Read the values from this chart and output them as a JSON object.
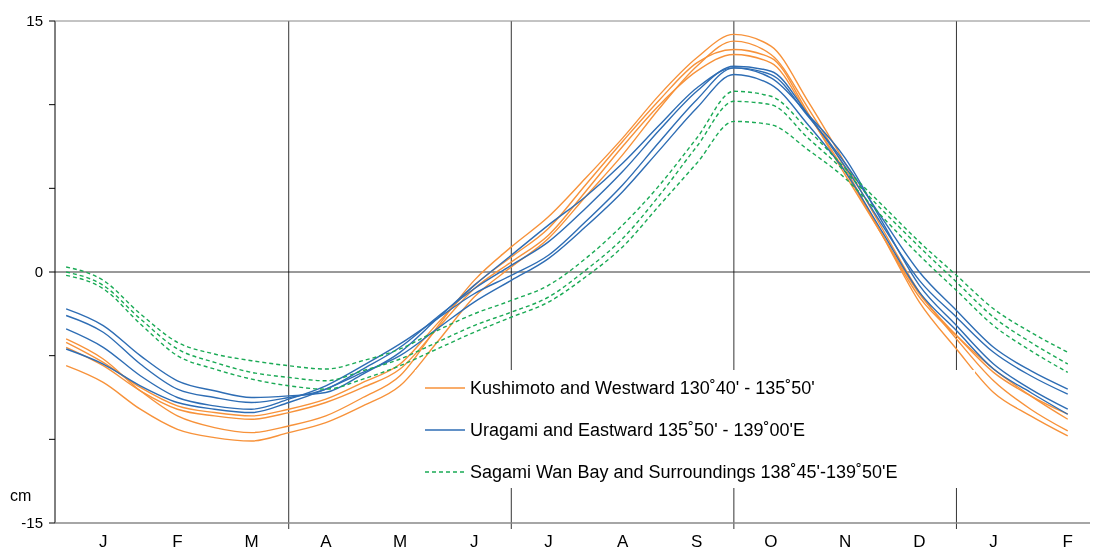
{
  "chart_data": {
    "type": "line",
    "ylabel": "cm",
    "categories": [
      null,
      "J",
      null,
      "F",
      null,
      "M",
      null,
      "A",
      null,
      "M",
      null,
      "J",
      null,
      "J",
      null,
      "A",
      null,
      "S",
      null,
      "O",
      null,
      "N",
      null,
      "D",
      null,
      "J",
      null,
      "F"
    ],
    "ylim": [
      -15,
      15
    ],
    "yticks": [
      -15,
      {
        "value": -10,
        "label": null
      },
      {
        "value": -5,
        "label": null
      },
      0,
      {
        "value": 5,
        "label": null
      },
      {
        "value": 10,
        "label": null
      },
      15
    ],
    "grid": "x",
    "legend": "bottom right",
    "marker": "none",
    "ref_lines": [
      {
        "axis": "y",
        "value": 0,
        "color": "#000000"
      }
    ],
    "series": [
      {
        "name": "Kushimoto and Westward 130˚40' - 135˚50'",
        "color": "#f7923a",
        "line_style": "solid",
        "values": [
          -5.6,
          -6.6,
          -8.2,
          -9.4,
          -9.9,
          -10.1,
          -9.6,
          -9.0,
          -8.0,
          -6.8,
          -4.2,
          -1.5,
          0.3,
          2.0,
          4.5,
          7.0,
          9.8,
          12.3,
          13.8,
          13.0,
          9.8,
          6.2,
          2.2,
          -1.8,
          -4.6,
          -7.2,
          -8.6,
          -9.8
        ]
      },
      {
        "color": "#f7923a",
        "line_style": "solid",
        "values": [
          -4.0,
          -5.2,
          -7.1,
          -8.6,
          -9.3,
          -9.6,
          -9.2,
          -8.6,
          -7.5,
          -6.2,
          -3.3,
          -0.5,
          1.5,
          3.3,
          5.6,
          8.0,
          10.6,
          12.8,
          14.2,
          13.5,
          10.2,
          6.5,
          2.6,
          -1.2,
          -4.0,
          -6.5,
          -8.2,
          -9.5
        ]
      },
      {
        "color": "#f7923a",
        "line_style": "solid",
        "values": [
          -4.5,
          -5.6,
          -7.1,
          -8.2,
          -8.6,
          -8.8,
          -8.4,
          -7.8,
          -6.9,
          -5.8,
          -3.4,
          -1.0,
          0.6,
          2.2,
          4.8,
          7.5,
          10.0,
          12.0,
          13.0,
          12.5,
          9.4,
          6.0,
          2.2,
          -1.5,
          -3.8,
          -5.8,
          -7.4,
          -8.8
        ]
      },
      {
        "color": "#f7923a",
        "line_style": "solid",
        "values": [
          -4.2,
          -5.4,
          -6.9,
          -8.0,
          -8.4,
          -8.6,
          -8.2,
          -7.6,
          -6.6,
          -5.5,
          -3.1,
          -0.8,
          0.9,
          2.6,
          5.2,
          7.8,
          10.3,
          12.5,
          13.3,
          12.8,
          9.5,
          5.8,
          2.2,
          -1.3,
          -3.8,
          -6.0,
          -7.4,
          -8.5
        ]
      },
      {
        "name": "Uragami and Eastward 135˚50' - 139˚00'E",
        "color": "#2e6db4",
        "line_style": "solid",
        "values": [
          -2.2,
          -3.2,
          -5.0,
          -6.5,
          -7.1,
          -7.5,
          -7.4,
          -7.2,
          -6.1,
          -4.8,
          -2.8,
          -0.8,
          1.0,
          2.8,
          4.5,
          6.5,
          8.8,
          11.0,
          12.2,
          11.8,
          9.3,
          6.5,
          3.2,
          0.0,
          -2.3,
          -4.5,
          -5.9,
          -7.0
        ]
      },
      {
        "color": "#2e6db4",
        "line_style": "solid",
        "values": [
          -2.6,
          -3.6,
          -5.5,
          -7.0,
          -7.5,
          -7.8,
          -7.5,
          -7.0,
          -5.8,
          -4.5,
          -2.7,
          -1.0,
          0.4,
          1.8,
          3.8,
          6.0,
          8.5,
          10.8,
          12.3,
          12.0,
          9.4,
          6.3,
          2.8,
          -0.5,
          -2.7,
          -4.8,
          -6.2,
          -7.3
        ]
      },
      {
        "color": "#2e6db4",
        "line_style": "solid",
        "values": [
          -3.4,
          -4.5,
          -6.2,
          -7.5,
          -8.0,
          -8.2,
          -7.6,
          -6.8,
          -5.6,
          -4.3,
          -2.8,
          -1.3,
          -0.2,
          1.0,
          3.0,
          5.2,
          7.8,
          10.3,
          12.2,
          11.6,
          9.4,
          6.8,
          3.0,
          -0.8,
          -3.2,
          -5.5,
          -7.0,
          -8.2
        ]
      },
      {
        "color": "#2e6db4",
        "line_style": "solid",
        "values": [
          -4.6,
          -5.5,
          -6.8,
          -7.8,
          -8.2,
          -8.4,
          -7.8,
          -7.0,
          -6.0,
          -5.0,
          -3.4,
          -1.8,
          -0.5,
          0.8,
          2.7,
          4.8,
          7.3,
          9.8,
          11.8,
          11.2,
          8.8,
          6.0,
          2.4,
          -1.2,
          -3.5,
          -5.8,
          -7.2,
          -8.5
        ]
      },
      {
        "name": "Sagami Wan Bay and Surroundings 138˚45'-139˚50'E",
        "color": "#1aaa55",
        "line_style": "dashed",
        "values": [
          0.3,
          -0.5,
          -2.5,
          -4.2,
          -4.9,
          -5.3,
          -5.6,
          -5.8,
          -5.3,
          -4.6,
          -3.5,
          -2.5,
          -1.7,
          -0.8,
          0.8,
          2.8,
          5.2,
          8.0,
          10.8,
          10.5,
          8.5,
          6.2,
          4.0,
          1.8,
          -0.2,
          -2.2,
          -3.6,
          -4.8
        ]
      },
      {
        "color": "#1aaa55",
        "line_style": "dashed",
        "values": [
          0.0,
          -0.8,
          -2.8,
          -4.6,
          -5.4,
          -6.0,
          -6.3,
          -6.5,
          -5.9,
          -5.2,
          -4.2,
          -3.2,
          -2.4,
          -1.5,
          0.1,
          2.0,
          4.6,
          7.5,
          10.2,
          10.0,
          8.0,
          6.0,
          3.7,
          1.5,
          -0.6,
          -2.7,
          -4.2,
          -5.5
        ]
      },
      {
        "color": "#1aaa55",
        "line_style": "dashed",
        "values": [
          -0.2,
          -1.0,
          -3.1,
          -5.0,
          -5.8,
          -6.4,
          -6.8,
          -7.0,
          -6.4,
          -5.6,
          -4.6,
          -3.6,
          -2.7,
          -1.8,
          -0.3,
          1.5,
          4.0,
          6.5,
          9.0,
          8.8,
          7.3,
          5.6,
          3.3,
          1.0,
          -1.1,
          -3.2,
          -4.7,
          -6.0
        ]
      }
    ]
  }
}
